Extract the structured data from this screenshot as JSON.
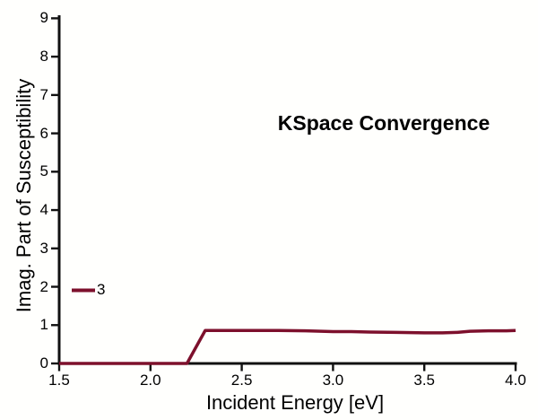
{
  "title": "KSpace Convergence",
  "legend": {
    "label": "3",
    "color": "#7d102c"
  },
  "chart_data": {
    "type": "line",
    "title": "KSpace Convergence",
    "xlabel": "Incident Energy [eV]",
    "ylabel": "Imag. Part of Susceptibility",
    "xlim": [
      1.5,
      4.0
    ],
    "ylim": [
      0,
      9
    ],
    "xticks": [
      1.5,
      2.0,
      2.5,
      3.0,
      3.5,
      4.0
    ],
    "yticks": [
      0,
      1,
      2,
      3,
      4,
      5,
      6,
      7,
      8,
      9
    ],
    "xtick_labels": [
      "1.5",
      "2.0",
      "2.5",
      "3.0",
      "3.5",
      "4.0"
    ],
    "ytick_labels": [
      "0",
      "1",
      "2",
      "3",
      "4",
      "5",
      "6",
      "7",
      "8",
      "9"
    ],
    "grid": false,
    "legend_position": "left-middle",
    "annotation": "KSpace Convergence",
    "series": [
      {
        "name": "3",
        "color": "#7d102c",
        "line_width": 3.5,
        "points": [
          [
            1.5,
            0
          ],
          [
            1.6,
            0
          ],
          [
            1.75,
            0
          ],
          [
            1.9,
            0
          ],
          [
            2.0,
            0
          ],
          [
            2.1,
            0
          ],
          [
            2.2,
            0
          ],
          [
            2.3,
            0.86
          ],
          [
            2.4,
            0.86
          ],
          [
            2.5,
            0.86
          ],
          [
            2.6,
            0.86
          ],
          [
            2.7,
            0.86
          ],
          [
            2.85,
            0.85
          ],
          [
            3.0,
            0.83
          ],
          [
            3.1,
            0.83
          ],
          [
            3.2,
            0.82
          ],
          [
            3.35,
            0.81
          ],
          [
            3.5,
            0.8
          ],
          [
            3.6,
            0.8
          ],
          [
            3.68,
            0.81
          ],
          [
            3.75,
            0.84
          ],
          [
            3.85,
            0.85
          ],
          [
            3.95,
            0.85
          ],
          [
            4.0,
            0.86
          ]
        ]
      }
    ]
  }
}
